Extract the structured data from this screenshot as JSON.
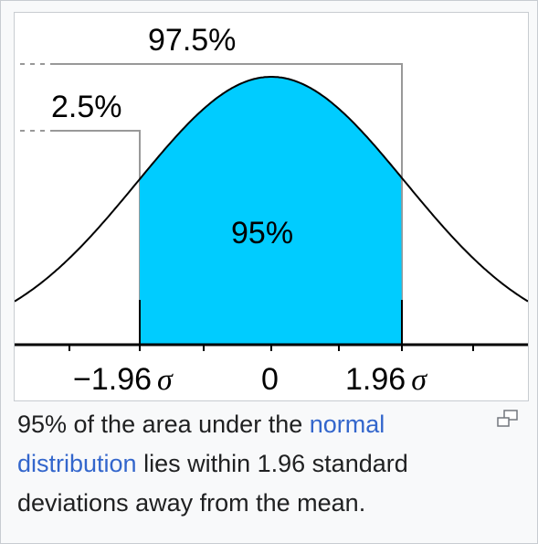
{
  "figure": {
    "label_top": "97.5%",
    "label_left": "2.5%",
    "label_center": "95%",
    "ticks": {
      "left_num": "−1.96",
      "left_sym": "σ",
      "zero": "0",
      "right_num": "1.96",
      "right_sym": "σ"
    }
  },
  "caption": {
    "part1": "95% of the area under the ",
    "link1": "normal",
    "space": " ",
    "link2": "distribution",
    "part2": " lies within 1.96 standard deviations away from the mean."
  },
  "colors": {
    "fill": "#00ccff",
    "link": "#3366cc",
    "leader": "#999999"
  },
  "icons": {
    "magnify": "magnify-icon"
  }
}
